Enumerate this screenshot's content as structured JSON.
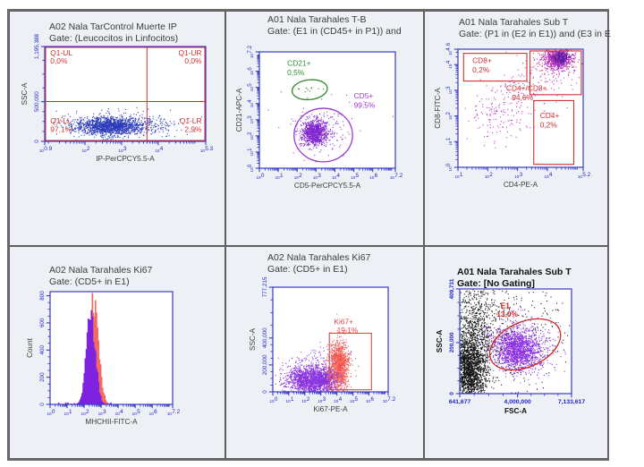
{
  "colors": {
    "axis": "#3a3ac8",
    "tick": "#2222c8",
    "title_text": "#3c3c3c",
    "red": "#cf3030",
    "green": "#2e8b2e",
    "purple": "#9a3ad0",
    "cell_bg": "#edf1f5"
  },
  "chart_data": [
    {
      "type": "scatter",
      "title": "A02 Nala TarControl Muerte IP",
      "gate": "Gate: (Leucocitos in Linfocitos)",
      "x": {
        "label": "IP-PerCPCY5.5-A",
        "type": "log",
        "lo": 0.9,
        "hi": 5.3,
        "ticks": [
          {
            "v": 0.9,
            "t": "0.9"
          },
          {
            "v": 2,
            "t": "2"
          },
          {
            "v": 3,
            "t": "3"
          },
          {
            "v": 4,
            "t": "4"
          },
          {
            "v": 5.3,
            "t": "5.3"
          }
        ]
      },
      "y": {
        "label": "SSC-A",
        "type": "lin",
        "lo": 0,
        "hi": 1195388,
        "ticks": [
          {
            "v": 0,
            "t": "0"
          },
          {
            "v": 500000,
            "t": "500,000"
          },
          {
            "v": 1195388,
            "t": "1,195,388"
          }
        ]
      },
      "gates": [
        {
          "kind": "frame",
          "col": "#cf3030",
          "name": "gate-q1-region"
        },
        {
          "kind": "quad",
          "fx": 0.635,
          "fy": 0.42,
          "col": "#cf3030",
          "name": "quadrant-gate"
        }
      ],
      "labels": [
        {
          "x": 0.035,
          "y": 0.03,
          "t": "Q1-UL",
          "c": "#cf3030"
        },
        {
          "x": 0.035,
          "y": 0.115,
          "t": "0,0%",
          "c": "#cf3030"
        },
        {
          "x": 0.975,
          "y": 0.03,
          "t": "Q1-UR",
          "c": "#cf3030",
          "a": "end"
        },
        {
          "x": 0.975,
          "y": 0.115,
          "t": "0,0%",
          "c": "#cf3030",
          "a": "end"
        },
        {
          "x": 0.035,
          "y": 0.745,
          "t": "Q1-LL",
          "c": "#cf3030"
        },
        {
          "x": 0.035,
          "y": 0.835,
          "t": "97,1%",
          "c": "#cf3030"
        },
        {
          "x": 0.975,
          "y": 0.745,
          "t": "Q1-LR",
          "c": "#cf3030",
          "a": "end"
        },
        {
          "x": 0.975,
          "y": 0.835,
          "t": "2,9%",
          "c": "#cf3030",
          "a": "end"
        }
      ],
      "clusters": [
        {
          "cx": 0.4,
          "cy": 0.16,
          "sx": 0.1,
          "sy": 0.045,
          "n": 1300,
          "col": "#2636b6"
        },
        {
          "cx": 0.44,
          "cy": 0.17,
          "sx": 0.17,
          "sy": 0.075,
          "n": 320,
          "col": "#3c4cc4"
        },
        {
          "cx": 0.66,
          "cy": 0.16,
          "sx": 0.09,
          "sy": 0.05,
          "n": 110,
          "col": "#3c4cc4"
        }
      ]
    },
    {
      "type": "scatter",
      "title": "A01 Nala Tarahales T-B",
      "gate": "Gate: (E1 in (CD45+ in P1)) and",
      "x": {
        "label": "CD5-PerCPCY5.5-A",
        "type": "log",
        "lo": 0,
        "hi": 7.2,
        "ticks": [
          {
            "v": 0,
            "t": "0"
          },
          {
            "v": 1,
            "t": "1"
          },
          {
            "v": 2,
            "t": "2"
          },
          {
            "v": 3,
            "t": "3"
          },
          {
            "v": 4,
            "t": "4"
          },
          {
            "v": 5,
            "t": "5"
          },
          {
            "v": 6,
            "t": "6"
          },
          {
            "v": 7.2,
            "t": "7.2"
          }
        ]
      },
      "y": {
        "label": "CD21-APC-A",
        "type": "log",
        "lo": 0,
        "hi": 7.2,
        "ticks": [
          {
            "v": 0,
            "t": "0"
          },
          {
            "v": 1,
            "t": "1"
          },
          {
            "v": 2,
            "t": "2"
          },
          {
            "v": 3,
            "t": "3"
          },
          {
            "v": 4,
            "t": "4"
          },
          {
            "v": 5,
            "t": "5"
          },
          {
            "v": 6,
            "t": "6"
          },
          {
            "v": 7.2,
            "t": "7.2"
          }
        ]
      },
      "gates": [
        {
          "kind": "ellipse",
          "cx": 0.37,
          "cy": 0.675,
          "rx": 0.13,
          "ry": 0.085,
          "rot": -6,
          "col": "#2e8b2e",
          "name": "gate-cd21"
        },
        {
          "kind": "ellipse",
          "cx": 0.47,
          "cy": 0.285,
          "rx": 0.215,
          "ry": 0.23,
          "rot": 0,
          "col": "#9a3ad0",
          "name": "gate-cd5"
        }
      ],
      "labels": [
        {
          "x": 0.205,
          "y": 0.065,
          "t": "CD21+",
          "c": "#2e8b2e"
        },
        {
          "x": 0.205,
          "y": 0.145,
          "t": "0,5%",
          "c": "#2e8b2e"
        },
        {
          "x": 0.695,
          "y": 0.345,
          "t": "CD5+",
          "c": "#9a3ad0"
        },
        {
          "x": 0.695,
          "y": 0.425,
          "t": "99,5%",
          "c": "#9a3ad0"
        }
      ],
      "clusters": [
        {
          "cx": 0.405,
          "cy": 0.305,
          "sx": 0.042,
          "sy": 0.05,
          "n": 850,
          "col": "#7b20cc"
        },
        {
          "cx": 0.43,
          "cy": 0.3,
          "sx": 0.085,
          "sy": 0.085,
          "n": 220,
          "col": "#9a44dd"
        },
        {
          "cx": 0.37,
          "cy": 0.665,
          "sx": 0.05,
          "sy": 0.035,
          "n": 12,
          "col": "#2e8b2e"
        },
        {
          "cx": 0.5,
          "cy": 0.42,
          "sx": 0.18,
          "sy": 0.15,
          "n": 30,
          "col": "#9a44dd"
        }
      ]
    },
    {
      "type": "scatter",
      "title": "A01 Nala Tarahales Sub T",
      "gate": "Gate: (P1 in (E2 in E1)) and (E3 in E",
      "x": {
        "label": "CD4-PE-A",
        "type": "log",
        "lo": 1,
        "hi": 5.2,
        "ticks": [
          {
            "v": 1,
            "t": "1"
          },
          {
            "v": 2,
            "t": "2"
          },
          {
            "v": 3,
            "t": "3"
          },
          {
            "v": 4,
            "t": "4"
          },
          {
            "v": 5.2,
            "t": "5.2"
          }
        ]
      },
      "y": {
        "label": "CD8-FITC-A",
        "type": "log",
        "lo": 0,
        "hi": 4.6,
        "ticks": [
          {
            "v": 0,
            "t": "0"
          },
          {
            "v": 1,
            "t": "1"
          },
          {
            "v": 2,
            "t": "2"
          },
          {
            "v": 3,
            "t": "3"
          },
          {
            "v": 4,
            "t": "4"
          },
          {
            "v": 4.6,
            "t": "4.6"
          }
        ]
      },
      "gates": [
        {
          "kind": "rect",
          "x0": 0.045,
          "y0": 0.73,
          "x1": 0.55,
          "y1": 0.965,
          "col": "#cf3030",
          "name": "gate-cd8"
        },
        {
          "kind": "rect",
          "x0": 0.575,
          "y0": 0.615,
          "x1": 0.985,
          "y1": 0.985,
          "col": "#cf3030",
          "name": "gate-cd4-cd8"
        },
        {
          "kind": "rect",
          "x0": 0.605,
          "y0": 0.025,
          "x1": 0.925,
          "y1": 0.565,
          "col": "#cf3030",
          "name": "gate-cd4"
        }
      ],
      "labels": [
        {
          "x": 0.115,
          "y": 0.065,
          "t": "CD8+",
          "c": "#cf3030"
        },
        {
          "x": 0.115,
          "y": 0.145,
          "t": "0,2%",
          "c": "#cf3030"
        },
        {
          "x": 0.385,
          "y": 0.3,
          "t": "CD4+/CD8+",
          "c": "#cf3030"
        },
        {
          "x": 0.43,
          "y": 0.38,
          "t": "94,6%",
          "c": "#cf3030"
        },
        {
          "x": 0.655,
          "y": 0.53,
          "t": "CD4+",
          "c": "#cf3030"
        },
        {
          "x": 0.655,
          "y": 0.61,
          "t": "0,2%",
          "c": "#cf3030"
        }
      ],
      "clusters": [
        {
          "cx": 0.8,
          "cy": 0.915,
          "sx": 0.055,
          "sy": 0.045,
          "n": 650,
          "col": "#b42cc4"
        },
        {
          "cx": 0.815,
          "cy": 0.925,
          "sx": 0.028,
          "sy": 0.024,
          "n": 380,
          "col": "#5a1cb0"
        },
        {
          "cx": 0.3,
          "cy": 0.42,
          "sx": 0.1,
          "sy": 0.12,
          "n": 130,
          "col": "#c244cc"
        },
        {
          "cx": 0.52,
          "cy": 0.66,
          "sx": 0.12,
          "sy": 0.12,
          "n": 90,
          "col": "#c244cc"
        },
        {
          "cx": 0.75,
          "cy": 0.85,
          "sx": 0.12,
          "sy": 0.1,
          "n": 120,
          "col": "#c244cc"
        },
        {
          "cx": 0.78,
          "cy": 0.9,
          "sx": 0.09,
          "sy": 0.07,
          "n": 60,
          "col": "#d04040"
        }
      ]
    },
    {
      "type": "histogram",
      "title": "A02 Nala Tarahales Ki67",
      "gate": "Gate: (CD5+ in E1)",
      "x": {
        "label": "MHCHII-FITC-A",
        "type": "log",
        "lo": 0,
        "hi": 7.2,
        "ticks": [
          {
            "v": 0,
            "t": "0"
          },
          {
            "v": 1,
            "t": "1"
          },
          {
            "v": 2,
            "t": "2"
          },
          {
            "v": 3,
            "t": "3"
          },
          {
            "v": 4,
            "t": "4"
          },
          {
            "v": 5,
            "t": "5"
          },
          {
            "v": 6,
            "t": "6"
          },
          {
            "v": 7.2,
            "t": "7.2"
          }
        ]
      },
      "y": {
        "label": "Count",
        "type": "lin",
        "lo": 0,
        "hi": 830,
        "ticks": [
          {
            "v": 0,
            "t": "0"
          },
          {
            "v": 200,
            "t": "200"
          },
          {
            "v": 400,
            "t": "400"
          },
          {
            "v": 600,
            "t": "600"
          },
          {
            "v": 800,
            "t": "800"
          }
        ]
      },
      "gates": [],
      "labels": [],
      "clusters": [],
      "hist": {
        "ymax": 830,
        "bin": 0.06,
        "series": [
          {
            "mu": 2.5,
            "sig": 0.3,
            "amp": 755,
            "col": "#f46a60"
          },
          {
            "mu": 2.37,
            "sig": 0.26,
            "amp": 645,
            "col": "#7c22e0"
          }
        ]
      }
    },
    {
      "type": "scatter",
      "title": "A02 Nala Tarahales Ki67",
      "gate": "Gate: (CD5+ in E1)",
      "x": {
        "label": "Ki67-PE-A",
        "type": "log",
        "lo": 0,
        "hi": 7.2,
        "ticks": [
          {
            "v": 0,
            "t": "0"
          },
          {
            "v": 1,
            "t": "1"
          },
          {
            "v": 2,
            "t": "2"
          },
          {
            "v": 3,
            "t": "3"
          },
          {
            "v": 4,
            "t": "4"
          },
          {
            "v": 5,
            "t": "5"
          },
          {
            "v": 6,
            "t": "6"
          },
          {
            "v": 7.2,
            "t": "7.2"
          }
        ]
      },
      "y": {
        "label": "SSC-A",
        "type": "lin",
        "lo": 0,
        "hi": 777215,
        "ticks": [
          {
            "v": 0,
            "t": "0"
          },
          {
            "v": 200000,
            "t": "200,000"
          },
          {
            "v": 400000,
            "t": "400,000"
          },
          {
            "v": 777215,
            "t": "777,215"
          }
        ]
      },
      "gates": [
        {
          "kind": "rect",
          "x0": 0.49,
          "y0": 0.02,
          "x1": 0.855,
          "y1": 0.56,
          "col": "#e04848",
          "name": "gate-ki67"
        }
      ],
      "labels": [
        {
          "x": 0.53,
          "y": 0.295,
          "t": "Ki67+",
          "c": "#e04848"
        },
        {
          "x": 0.555,
          "y": 0.375,
          "t": "19,1%",
          "c": "#e04848"
        }
      ],
      "clusters": [
        {
          "cx": 0.33,
          "cy": 0.115,
          "sx": 0.105,
          "sy": 0.065,
          "n": 1500,
          "col": "#8730dd"
        },
        {
          "cx": 0.36,
          "cy": 0.16,
          "sx": 0.15,
          "sy": 0.11,
          "n": 350,
          "col": "#9a4ae4",
          "rot": 25
        },
        {
          "cx": 0.57,
          "cy": 0.22,
          "sx": 0.045,
          "sy": 0.13,
          "n": 800,
          "col": "#f4655c"
        },
        {
          "cx": 0.575,
          "cy": 0.3,
          "sx": 0.035,
          "sy": 0.09,
          "n": 350,
          "col": "#f4554c"
        },
        {
          "cx": 0.45,
          "cy": 0.12,
          "sx": 0.06,
          "sy": 0.05,
          "n": 250,
          "col": "#8730dd"
        }
      ]
    },
    {
      "type": "scatter",
      "bold": true,
      "title": "A01 Nala Tarahales Sub T",
      "gate": "Gate: [No Gating]",
      "x": {
        "label": "FSC-A",
        "type": "lin",
        "lo": 641677,
        "hi": 7133617,
        "ticks": [
          {
            "v": 641677,
            "t": "641,677"
          },
          {
            "v": 4000000,
            "t": "4,000,000"
          },
          {
            "v": 7133617,
            "t": "7,133,617"
          }
        ]
      },
      "y": {
        "label": "SSC-A",
        "type": "lin",
        "lo": 0,
        "hi": 409731,
        "ticks": [
          {
            "v": 0,
            "t": "0"
          },
          {
            "v": 200000,
            "t": "200,000"
          },
          {
            "v": 409731,
            "t": "409,731"
          }
        ]
      },
      "gates": [
        {
          "kind": "ellipse",
          "cx": 0.585,
          "cy": 0.47,
          "rx": 0.335,
          "ry": 0.215,
          "rot": -24,
          "col": "#d02020",
          "name": "gate-e1"
        }
      ],
      "labels": [
        {
          "x": 0.365,
          "y": 0.125,
          "t": "E1",
          "c": "#d02020",
          "b": true
        },
        {
          "x": 0.33,
          "y": 0.205,
          "t": "13,0%",
          "c": "#d02020",
          "b": true
        }
      ],
      "clusters": [
        {
          "cx": 0.085,
          "cy": 0.22,
          "sx": 0.075,
          "sy": 0.17,
          "n": 1700,
          "col": "#0c0c0c"
        },
        {
          "cx": 0.14,
          "cy": 0.6,
          "sx": 0.09,
          "sy": 0.26,
          "n": 700,
          "col": "#1a1a1a"
        },
        {
          "cx": 0.35,
          "cy": 0.55,
          "sx": 0.3,
          "sy": 0.3,
          "n": 500,
          "col": "#222222"
        },
        {
          "cx": 0.52,
          "cy": 0.42,
          "sx": 0.105,
          "sy": 0.095,
          "n": 1300,
          "col": "#8a2be2",
          "rot": -18
        },
        {
          "cx": 0.56,
          "cy": 0.44,
          "sx": 0.16,
          "sy": 0.13,
          "n": 350,
          "col": "#9a44ee",
          "rot": -18
        }
      ]
    }
  ]
}
